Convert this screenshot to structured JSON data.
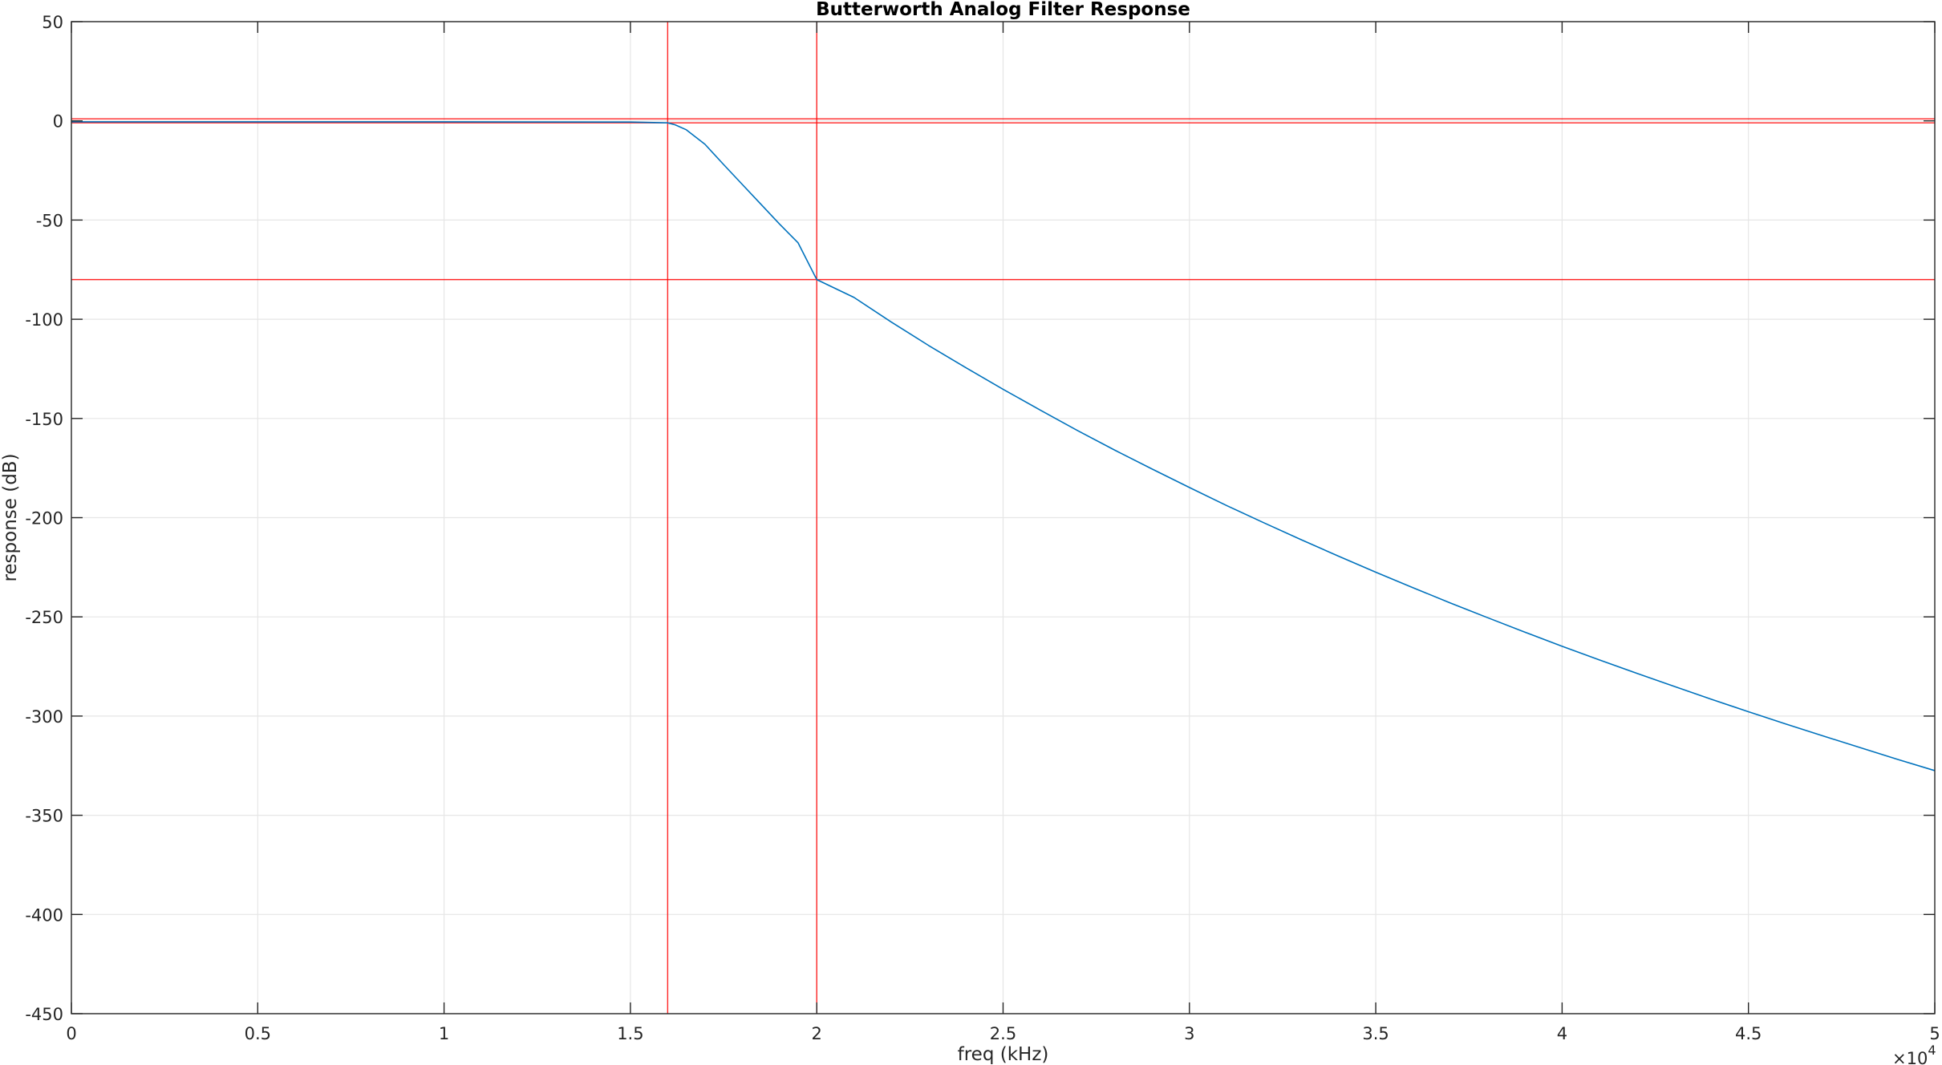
{
  "chart_data": {
    "type": "line",
    "title": "Butterworth Analog Filter Response",
    "xlabel": "freq (kHz)",
    "ylabel": "response (dB)",
    "xlim": [
      0,
      50000
    ],
    "ylim": [
      -450,
      50
    ],
    "x_exponent_label": "×10",
    "x_exponent_power": "4",
    "x_tick_values": [
      0,
      5000,
      10000,
      15000,
      20000,
      25000,
      30000,
      35000,
      40000,
      45000,
      50000
    ],
    "x_tick_labels": [
      "0",
      "0.5",
      "1",
      "1.5",
      "2",
      "2.5",
      "3",
      "3.5",
      "4",
      "4.5",
      "5"
    ],
    "y_tick_values": [
      50,
      0,
      -50,
      -100,
      -150,
      -200,
      -250,
      -300,
      -350,
      -400,
      -450
    ],
    "y_tick_labels": [
      "50",
      "0",
      "-50",
      "-100",
      "-150",
      "-200",
      "-250",
      "-300",
      "-350",
      "-400",
      "-450"
    ],
    "grid": true,
    "series": [
      {
        "color": "#0072bd",
        "x": [
          0,
          5000,
          10000,
          15000,
          15500,
          16000,
          16200,
          16500,
          17000,
          17500,
          18000,
          18500,
          19000,
          19500,
          20000,
          21000,
          22000,
          23000,
          24000,
          25000,
          26000,
          27000,
          28000,
          29000,
          30000,
          31000,
          32000,
          33000,
          34000,
          35000,
          36000,
          37000,
          38000,
          39000,
          40000,
          41000,
          42000,
          43000,
          44000,
          45000,
          46000,
          47000,
          48000,
          49000,
          50000
        ],
        "y": [
          -0.5,
          -0.5,
          -0.5,
          -0.6,
          -0.8,
          -1,
          -2,
          -4.5,
          -11.8,
          -22,
          -32,
          -42,
          -52,
          -61.5,
          -80,
          -89,
          -101.4,
          -113.2,
          -124.4,
          -135.3,
          -145.8,
          -156.1,
          -166,
          -175.5,
          -184.8,
          -193.9,
          -202.6,
          -211.1,
          -219.4,
          -227.5,
          -235.3,
          -243,
          -250.4,
          -257.7,
          -264.8,
          -271.7,
          -278.4,
          -285,
          -291.5,
          -297.8,
          -304,
          -310,
          -315.9,
          -321.8,
          -327.5
        ]
      }
    ],
    "reference_lines": {
      "color": "#ff0000",
      "horizontal": [
        1,
        -1,
        -80
      ],
      "vertical": [
        16000,
        20000
      ]
    }
  }
}
